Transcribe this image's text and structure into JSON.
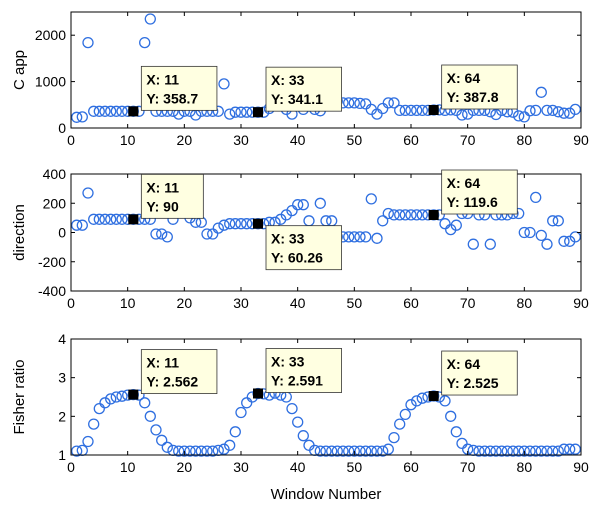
{
  "colors": {
    "marker": "#2f6fe0",
    "tip_fill": "#ffffe1",
    "axis": "#000000"
  },
  "chart_data": [
    {
      "type": "scatter",
      "ylabel": "C app",
      "xlim": [
        0,
        90
      ],
      "ylim": [
        0,
        2500
      ],
      "xticks": [
        0,
        10,
        20,
        30,
        40,
        50,
        60,
        70,
        80,
        90
      ],
      "yticks": [
        0,
        1000,
        2000
      ],
      "x": [
        1,
        2,
        3,
        4,
        5,
        6,
        7,
        8,
        9,
        10,
        11,
        12,
        13,
        14,
        15,
        16,
        17,
        18,
        19,
        20,
        21,
        22,
        23,
        24,
        25,
        26,
        27,
        28,
        29,
        30,
        31,
        32,
        33,
        34,
        35,
        36,
        37,
        38,
        39,
        40,
        41,
        42,
        43,
        44,
        45,
        46,
        47,
        48,
        49,
        50,
        51,
        52,
        53,
        54,
        55,
        56,
        57,
        58,
        59,
        60,
        61,
        62,
        63,
        64,
        65,
        66,
        67,
        68,
        69,
        70,
        71,
        72,
        73,
        74,
        75,
        76,
        77,
        78,
        79,
        80,
        81,
        82,
        83,
        84,
        85,
        86,
        87,
        88,
        89
      ],
      "y": [
        230,
        240,
        1840,
        360,
        360,
        360,
        360,
        360,
        360,
        360,
        359,
        360,
        1840,
        2350,
        360,
        360,
        360,
        360,
        300,
        360,
        360,
        280,
        360,
        360,
        360,
        360,
        950,
        300,
        340,
        340,
        340,
        340,
        341,
        340,
        420,
        540,
        560,
        400,
        300,
        620,
        400,
        560,
        400,
        370,
        560,
        600,
        580,
        540,
        540,
        540,
        530,
        520,
        400,
        300,
        420,
        540,
        540,
        380,
        380,
        380,
        380,
        380,
        380,
        388,
        390,
        380,
        390,
        380,
        280,
        300,
        380,
        380,
        380,
        350,
        290,
        380,
        350,
        340,
        260,
        240,
        370,
        380,
        770,
        380,
        380,
        350,
        320,
        320,
        400
      ],
      "markers": [
        {
          "x": 11,
          "y": 358.7,
          "label_x": "X: 11",
          "label_y": "Y: 358.7",
          "box": "above"
        },
        {
          "x": 33,
          "y": 341.1,
          "label_x": "X: 33",
          "label_y": "Y: 341.1",
          "box": "above"
        },
        {
          "x": 64,
          "y": 387.8,
          "label_x": "X: 64",
          "label_y": "Y: 387.8",
          "box": "above"
        }
      ]
    },
    {
      "type": "scatter",
      "ylabel": "direction",
      "xlim": [
        0,
        90
      ],
      "ylim": [
        -400,
        400
      ],
      "xticks": [
        0,
        10,
        20,
        30,
        40,
        50,
        60,
        70,
        80,
        90
      ],
      "yticks": [
        -400,
        -200,
        0,
        200,
        400
      ],
      "x": [
        1,
        2,
        3,
        4,
        5,
        6,
        7,
        8,
        9,
        10,
        11,
        12,
        13,
        14,
        15,
        16,
        17,
        18,
        19,
        20,
        21,
        22,
        23,
        24,
        25,
        26,
        27,
        28,
        29,
        30,
        31,
        32,
        33,
        34,
        35,
        36,
        37,
        38,
        39,
        40,
        41,
        42,
        43,
        44,
        45,
        46,
        47,
        48,
        49,
        50,
        51,
        52,
        53,
        54,
        55,
        56,
        57,
        58,
        59,
        60,
        61,
        62,
        63,
        64,
        65,
        66,
        67,
        68,
        69,
        70,
        71,
        72,
        73,
        74,
        75,
        76,
        77,
        78,
        79,
        80,
        81,
        82,
        83,
        84,
        85,
        86,
        87,
        88,
        89
      ],
      "y": [
        50,
        50,
        270,
        90,
        90,
        90,
        90,
        90,
        90,
        90,
        90,
        90,
        90,
        90,
        -10,
        -10,
        -30,
        90,
        140,
        140,
        100,
        70,
        70,
        -10,
        -10,
        30,
        50,
        60,
        60,
        60,
        60,
        60,
        60,
        60,
        70,
        70,
        90,
        120,
        150,
        190,
        190,
        80,
        -10,
        200,
        80,
        80,
        -30,
        -30,
        -30,
        -30,
        -30,
        -30,
        230,
        -40,
        80,
        130,
        120,
        120,
        120,
        120,
        120,
        120,
        120,
        120,
        120,
        60,
        20,
        50,
        130,
        130,
        -80,
        120,
        120,
        -80,
        120,
        120,
        120,
        130,
        130,
        0,
        0,
        240,
        -20,
        -80,
        80,
        80,
        -60,
        -60,
        -30
      ],
      "markers": [
        {
          "x": 11,
          "y": 90,
          "label_x": "X: 11",
          "label_y": "Y: 90",
          "box": "above"
        },
        {
          "x": 33,
          "y": 60.26,
          "label_x": "X: 33",
          "label_y": "Y: 60.26",
          "box": "below"
        },
        {
          "x": 64,
          "y": 119.6,
          "label_x": "X: 64",
          "label_y": "Y: 119.6",
          "box": "above"
        }
      ]
    },
    {
      "type": "scatter",
      "ylabel": "Fisher ratio",
      "xlabel": "Window Number",
      "xlim": [
        0,
        90
      ],
      "ylim": [
        1,
        4
      ],
      "xticks": [
        0,
        10,
        20,
        30,
        40,
        50,
        60,
        70,
        80,
        90
      ],
      "yticks": [
        1,
        2,
        3,
        4
      ],
      "x": [
        1,
        2,
        3,
        4,
        5,
        6,
        7,
        8,
        9,
        10,
        11,
        12,
        13,
        14,
        15,
        16,
        17,
        18,
        19,
        20,
        21,
        22,
        23,
        24,
        25,
        26,
        27,
        28,
        29,
        30,
        31,
        32,
        33,
        34,
        35,
        36,
        37,
        38,
        39,
        40,
        41,
        42,
        43,
        44,
        45,
        46,
        47,
        48,
        49,
        50,
        51,
        52,
        53,
        54,
        55,
        56,
        57,
        58,
        59,
        60,
        61,
        62,
        63,
        64,
        65,
        66,
        67,
        68,
        69,
        70,
        71,
        72,
        73,
        74,
        75,
        76,
        77,
        78,
        79,
        80,
        81,
        82,
        83,
        84,
        85,
        86,
        87,
        88,
        89
      ],
      "y": [
        1.1,
        1.12,
        1.35,
        1.8,
        2.2,
        2.35,
        2.45,
        2.5,
        2.52,
        2.55,
        2.562,
        2.55,
        2.35,
        2.0,
        1.65,
        1.38,
        1.2,
        1.12,
        1.1,
        1.1,
        1.1,
        1.1,
        1.1,
        1.1,
        1.1,
        1.12,
        1.15,
        1.25,
        1.6,
        2.1,
        2.35,
        2.5,
        2.591,
        2.58,
        2.55,
        2.6,
        2.55,
        2.5,
        2.2,
        1.85,
        1.5,
        1.25,
        1.12,
        1.1,
        1.1,
        1.1,
        1.1,
        1.1,
        1.1,
        1.1,
        1.1,
        1.1,
        1.1,
        1.1,
        1.1,
        1.15,
        1.45,
        1.8,
        2.05,
        2.3,
        2.4,
        2.47,
        2.5,
        2.525,
        2.5,
        2.4,
        2.0,
        1.6,
        1.3,
        1.15,
        1.12,
        1.1,
        1.1,
        1.1,
        1.1,
        1.1,
        1.1,
        1.1,
        1.1,
        1.1,
        1.1,
        1.1,
        1.1,
        1.1,
        1.1,
        1.1,
        1.15,
        1.15,
        1.15
      ],
      "markers": [
        {
          "x": 11,
          "y": 2.562,
          "label_x": "X: 11",
          "label_y": "Y: 2.562",
          "box": "above"
        },
        {
          "x": 33,
          "y": 2.591,
          "label_x": "X: 33",
          "label_y": "Y: 2.591",
          "box": "above"
        },
        {
          "x": 64,
          "y": 2.525,
          "label_x": "X: 64",
          "label_y": "Y: 2.525",
          "box": "above"
        }
      ]
    }
  ]
}
